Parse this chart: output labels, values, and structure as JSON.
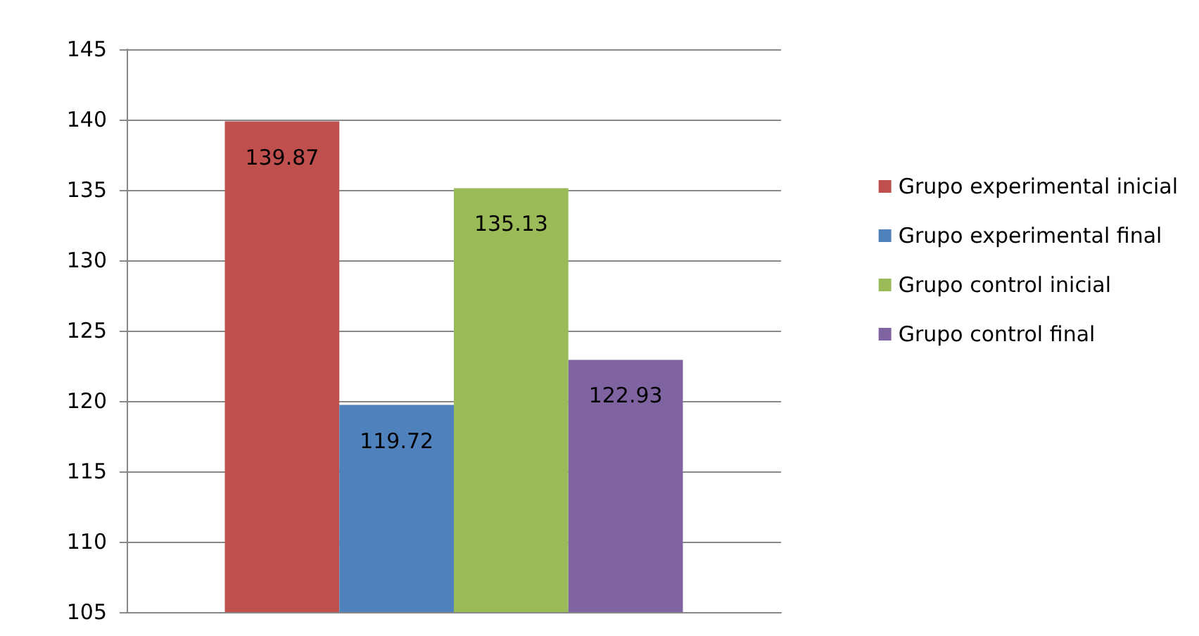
{
  "chart_data": {
    "type": "bar",
    "categories": [
      null
    ],
    "series": [
      {
        "name": "Grupo experimental inicial",
        "color": "#c0504d",
        "values": [
          139.87
        ]
      },
      {
        "name": "Grupo experimental final",
        "color": "#4f81bd",
        "values": [
          119.72
        ]
      },
      {
        "name": "Grupo control inicial",
        "color": "#9bbb59",
        "values": [
          135.13
        ]
      },
      {
        "name": "Grupo control final",
        "color": "#8064a2",
        "values": [
          122.93
        ]
      }
    ],
    "ylim": [
      105,
      145
    ],
    "yticks": [
      105,
      110,
      115,
      120,
      125,
      130,
      135,
      140,
      145
    ],
    "grid": "y",
    "legend": "right",
    "data_labels": true
  }
}
